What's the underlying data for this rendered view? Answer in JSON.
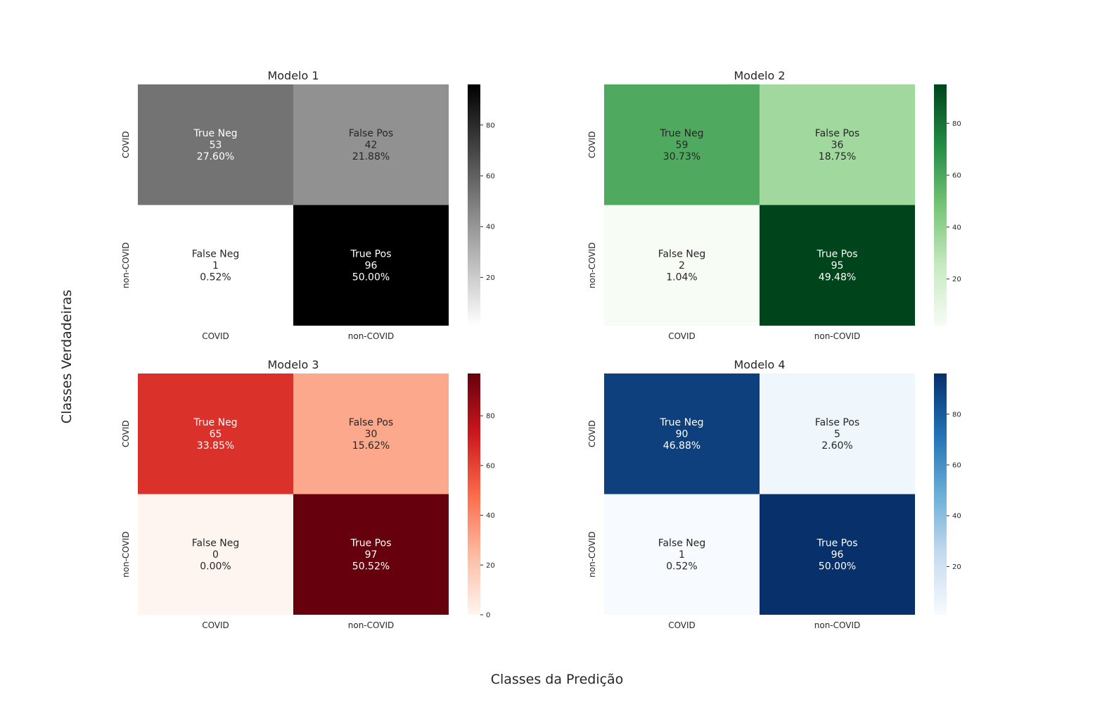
{
  "figure": {
    "supxlabel": "Classes da Predição",
    "supylabel": "Classes Verdadeiras"
  },
  "chart_data": [
    {
      "type": "heatmap",
      "title": "Modelo 1",
      "colormap": "Greys",
      "colors": [
        "#ffffff",
        "#000000"
      ],
      "xcategories": [
        "COVID",
        "non-COVID"
      ],
      "ycategories": [
        "COVID",
        "non-COVID"
      ],
      "values": [
        [
          53,
          42
        ],
        [
          1,
          96
        ]
      ],
      "labels": [
        [
          "True Neg",
          "False Pos"
        ],
        [
          "False Neg",
          "True Pos"
        ]
      ],
      "percents": [
        [
          "27.60%",
          "21.88%"
        ],
        [
          "0.52%",
          "50.00%"
        ]
      ],
      "vmin": 1,
      "vmax": 96,
      "colorbar_ticks": [
        20,
        40,
        60,
        80
      ]
    },
    {
      "type": "heatmap",
      "title": "Modelo 2",
      "colormap": "Greens",
      "colors": [
        "#f7fcf5",
        "#c7e9c0",
        "#74c476",
        "#238b45",
        "#00441b"
      ],
      "xcategories": [
        "COVID",
        "non-COVID"
      ],
      "ycategories": [
        "COVID",
        "non-COVID"
      ],
      "values": [
        [
          59,
          36
        ],
        [
          2,
          95
        ]
      ],
      "labels": [
        [
          "True Neg",
          "False Pos"
        ],
        [
          "False Neg",
          "True Pos"
        ]
      ],
      "percents": [
        [
          "30.73%",
          "18.75%"
        ],
        [
          "1.04%",
          "49.48%"
        ]
      ],
      "vmin": 2,
      "vmax": 95,
      "colorbar_ticks": [
        20,
        40,
        60,
        80
      ]
    },
    {
      "type": "heatmap",
      "title": "Modelo 3",
      "colormap": "Reds",
      "colors": [
        "#fff5f0",
        "#fcbba1",
        "#fb6a4a",
        "#cb181d",
        "#67000d"
      ],
      "xcategories": [
        "COVID",
        "non-COVID"
      ],
      "ycategories": [
        "COVID",
        "non-COVID"
      ],
      "values": [
        [
          65,
          30
        ],
        [
          0,
          97
        ]
      ],
      "labels": [
        [
          "True Neg",
          "False Pos"
        ],
        [
          "False Neg",
          "True Pos"
        ]
      ],
      "percents": [
        [
          "33.85%",
          "15.62%"
        ],
        [
          "0.00%",
          "50.52%"
        ]
      ],
      "vmin": 0,
      "vmax": 97,
      "colorbar_ticks": [
        0,
        20,
        40,
        60,
        80
      ]
    },
    {
      "type": "heatmap",
      "title": "Modelo 4",
      "colormap": "Blues",
      "colors": [
        "#f7fbff",
        "#c6dbef",
        "#6baed6",
        "#2171b5",
        "#08306b"
      ],
      "xcategories": [
        "COVID",
        "non-COVID"
      ],
      "ycategories": [
        "COVID",
        "non-COVID"
      ],
      "values": [
        [
          90,
          5
        ],
        [
          1,
          96
        ]
      ],
      "labels": [
        [
          "True Neg",
          "False Pos"
        ],
        [
          "False Neg",
          "True Pos"
        ]
      ],
      "percents": [
        [
          "46.88%",
          "2.60%"
        ],
        [
          "0.52%",
          "50.00%"
        ]
      ],
      "vmin": 1,
      "vmax": 96,
      "colorbar_ticks": [
        20,
        40,
        60,
        80
      ]
    }
  ]
}
